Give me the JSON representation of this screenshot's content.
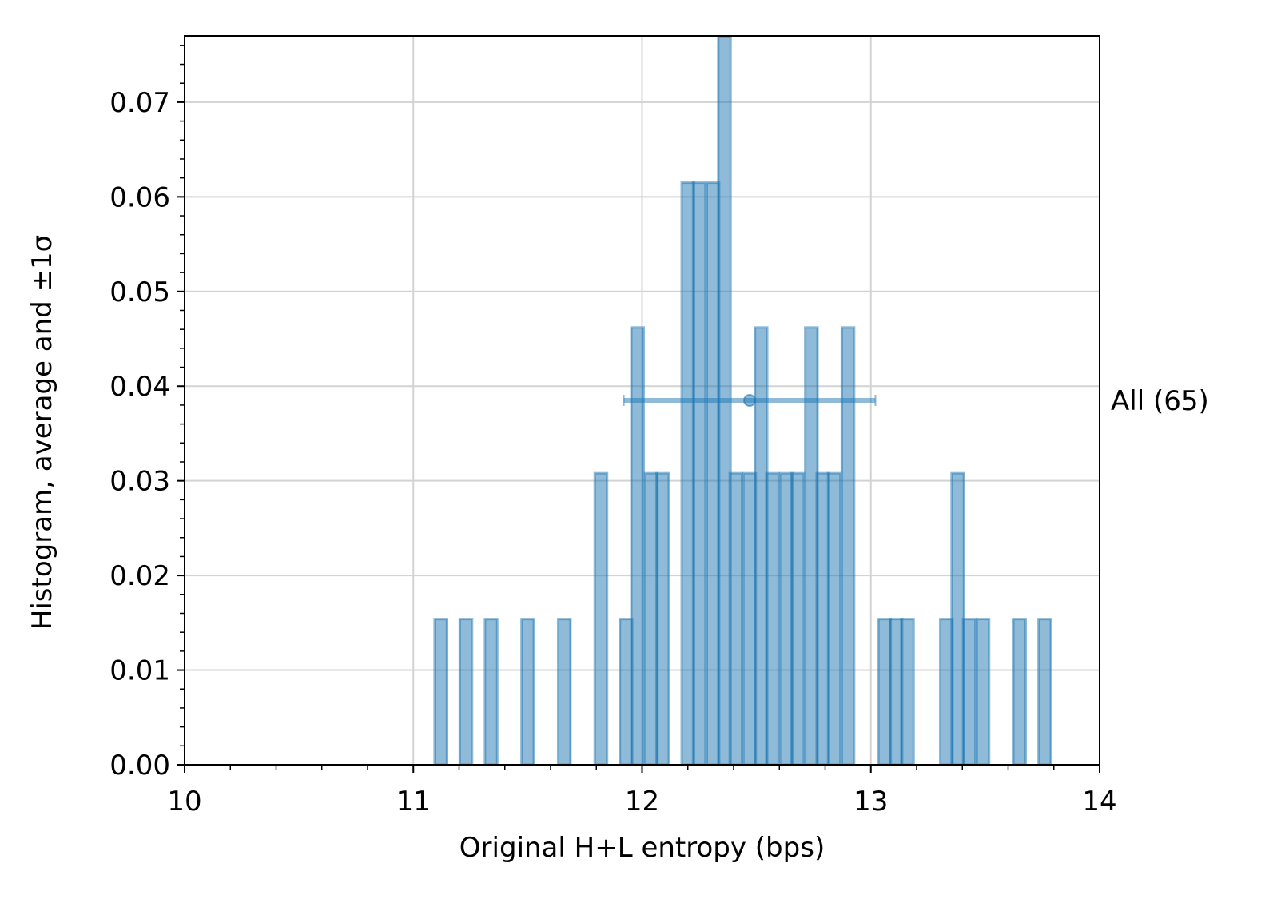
{
  "chart_data": {
    "type": "bar",
    "title": "",
    "xlabel": "Original H+L entropy (bps)",
    "ylabel": "Histogram, average and ±1σ",
    "xlim": [
      10,
      14
    ],
    "ylim": [
      0,
      0.077
    ],
    "xticks": [
      "10",
      "11",
      "12",
      "13",
      "14"
    ],
    "yticks": [
      "0.00",
      "0.01",
      "0.02",
      "0.03",
      "0.04",
      "0.05",
      "0.06",
      "0.07"
    ],
    "grid": true,
    "bin_width": 0.054,
    "series": [
      {
        "name": "All (65)",
        "color": "#1f77b4",
        "bins": [
          {
            "x": 11.12,
            "value": 0.0154
          },
          {
            "x": 11.23,
            "value": 0.0154
          },
          {
            "x": 11.34,
            "value": 0.0154
          },
          {
            "x": 11.5,
            "value": 0.0154
          },
          {
            "x": 11.66,
            "value": 0.0154
          },
          {
            "x": 11.82,
            "value": 0.0308
          },
          {
            "x": 11.93,
            "value": 0.0154
          },
          {
            "x": 11.98,
            "value": 0.0462
          },
          {
            "x": 12.04,
            "value": 0.0308
          },
          {
            "x": 12.09,
            "value": 0.0308
          },
          {
            "x": 12.2,
            "value": 0.0615
          },
          {
            "x": 12.25,
            "value": 0.0615
          },
          {
            "x": 12.31,
            "value": 0.0615
          },
          {
            "x": 12.36,
            "value": 0.0769
          },
          {
            "x": 12.41,
            "value": 0.0308
          },
          {
            "x": 12.47,
            "value": 0.0308
          },
          {
            "x": 12.52,
            "value": 0.0462
          },
          {
            "x": 12.57,
            "value": 0.0308
          },
          {
            "x": 12.63,
            "value": 0.0308
          },
          {
            "x": 12.68,
            "value": 0.0308
          },
          {
            "x": 12.74,
            "value": 0.0462
          },
          {
            "x": 12.79,
            "value": 0.0308
          },
          {
            "x": 12.84,
            "value": 0.0308
          },
          {
            "x": 12.9,
            "value": 0.0462
          },
          {
            "x": 13.06,
            "value": 0.0154
          },
          {
            "x": 13.11,
            "value": 0.0154
          },
          {
            "x": 13.16,
            "value": 0.0154
          },
          {
            "x": 13.33,
            "value": 0.0154
          },
          {
            "x": 13.38,
            "value": 0.0308
          },
          {
            "x": 13.43,
            "value": 0.0154
          },
          {
            "x": 13.49,
            "value": 0.0154
          },
          {
            "x": 13.65,
            "value": 0.0154
          },
          {
            "x": 13.76,
            "value": 0.0154
          }
        ],
        "mean": 12.47,
        "std": 0.55,
        "mean_y": 0.0385
      }
    ],
    "series_label": "All (65)"
  }
}
